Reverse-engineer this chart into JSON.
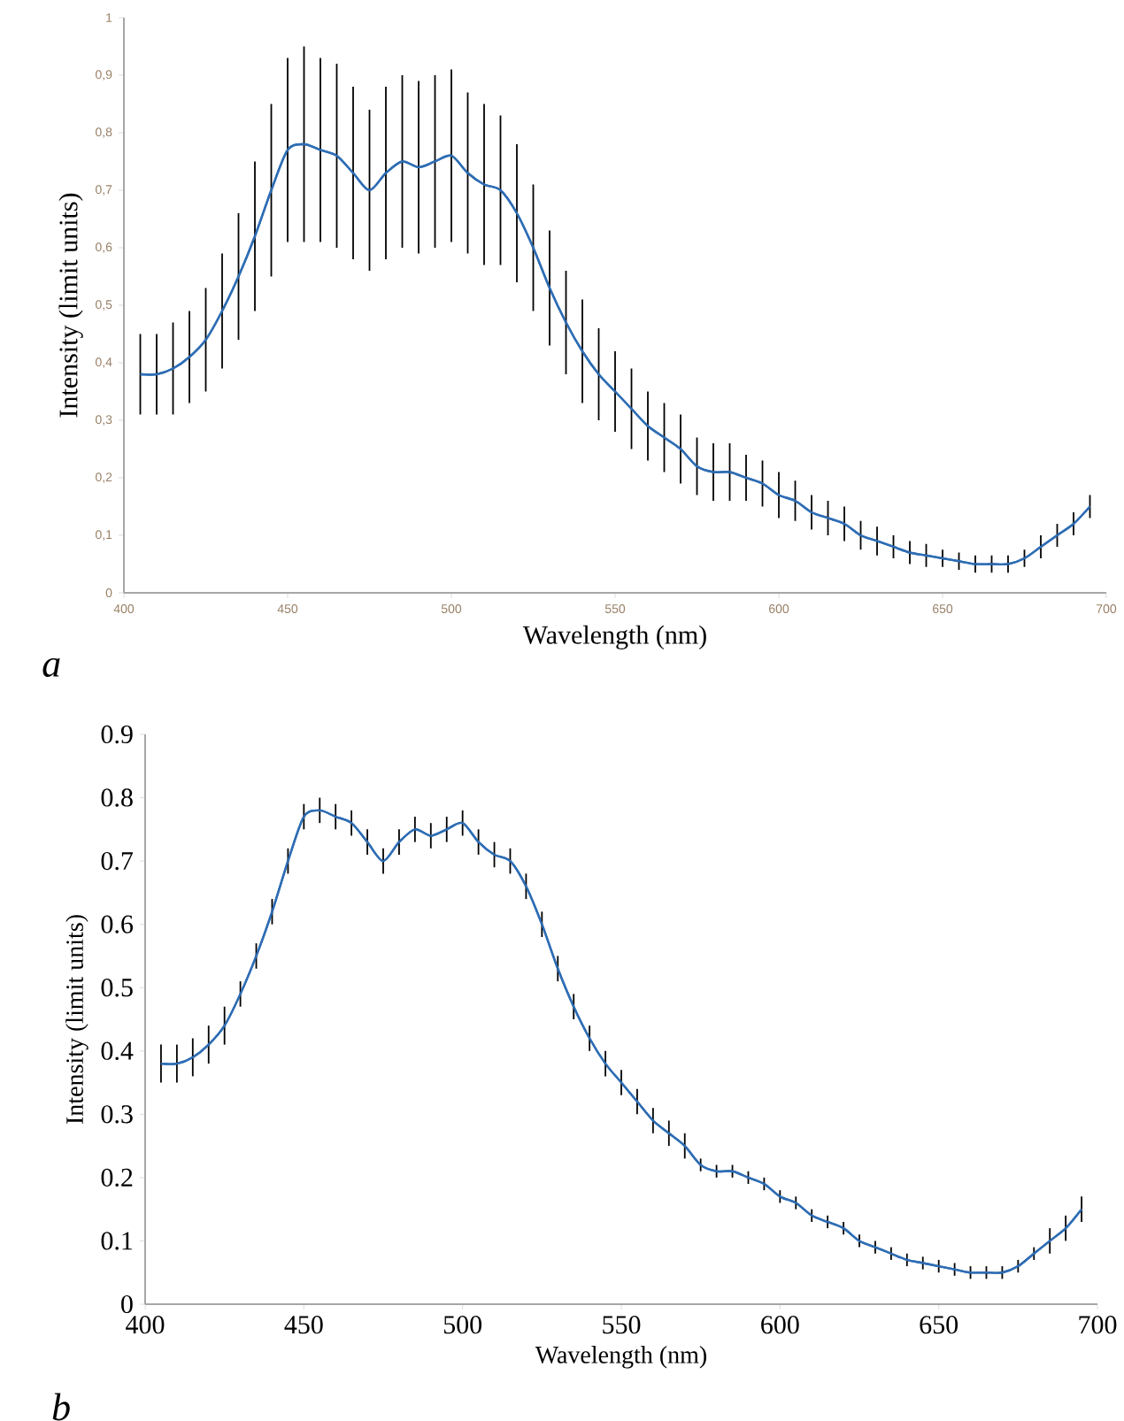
{
  "chart_data": [
    {
      "type": "line",
      "color": "#2e6db4",
      "xlabel": "Wavelength (nm)",
      "ylabel": "Intensity (limit units)",
      "annotations": [
        "a"
      ],
      "xlim": [
        400,
        700
      ],
      "ylim": [
        0,
        1
      ],
      "xticks": [
        400,
        450,
        500,
        550,
        600,
        650,
        700
      ],
      "yticks": [
        0,
        {
          "value": 0.1,
          "label": "0,1"
        },
        {
          "value": 0.2,
          "label": "0,2"
        },
        {
          "value": 0.3,
          "label": "0,3"
        },
        {
          "value": 0.4,
          "label": "0,4"
        },
        {
          "value": 0.5,
          "label": "0,5"
        },
        {
          "value": 0.6,
          "label": "0,6"
        },
        {
          "value": 0.7,
          "label": "0,7"
        },
        {
          "value": 0.8,
          "label": "0,8"
        },
        {
          "value": 0.9,
          "label": "0,9"
        },
        1
      ],
      "x": [
        405,
        410,
        415,
        420,
        425,
        430,
        435,
        440,
        445,
        450,
        455,
        460,
        465,
        470,
        475,
        480,
        485,
        490,
        495,
        500,
        505,
        510,
        515,
        520,
        525,
        530,
        535,
        540,
        545,
        550,
        555,
        560,
        565,
        570,
        575,
        580,
        585,
        590,
        595,
        600,
        605,
        610,
        615,
        620,
        625,
        630,
        635,
        640,
        645,
        650,
        655,
        660,
        665,
        670,
        675,
        680,
        685,
        690,
        695
      ],
      "values": [
        0.38,
        0.38,
        0.39,
        0.41,
        0.44,
        0.49,
        0.55,
        0.62,
        0.7,
        0.77,
        0.78,
        0.77,
        0.76,
        0.73,
        0.7,
        0.73,
        0.75,
        0.74,
        0.75,
        0.76,
        0.73,
        0.71,
        0.7,
        0.66,
        0.6,
        0.53,
        0.47,
        0.42,
        0.38,
        0.35,
        0.32,
        0.29,
        0.27,
        0.25,
        0.22,
        0.21,
        0.21,
        0.2,
        0.19,
        0.17,
        0.16,
        0.14,
        0.13,
        0.12,
        0.1,
        0.09,
        0.08,
        0.07,
        0.065,
        0.06,
        0.055,
        0.05,
        0.05,
        0.05,
        0.06,
        0.08,
        0.1,
        0.12,
        0.15
      ],
      "errors": [
        0.07,
        0.07,
        0.08,
        0.08,
        0.09,
        0.1,
        0.11,
        0.13,
        0.15,
        0.16,
        0.17,
        0.16,
        0.16,
        0.15,
        0.14,
        0.15,
        0.15,
        0.15,
        0.15,
        0.15,
        0.14,
        0.14,
        0.13,
        0.12,
        0.11,
        0.1,
        0.09,
        0.09,
        0.08,
        0.07,
        0.07,
        0.06,
        0.06,
        0.06,
        0.05,
        0.05,
        0.05,
        0.04,
        0.04,
        0.04,
        0.035,
        0.03,
        0.03,
        0.03,
        0.025,
        0.025,
        0.02,
        0.02,
        0.02,
        0.015,
        0.015,
        0.015,
        0.015,
        0.015,
        0.015,
        0.02,
        0.02,
        0.02,
        0.02
      ]
    },
    {
      "type": "line",
      "color": "#2e6db4",
      "xlabel": "Wavelength (nm)",
      "ylabel": "Intensity (limit units)",
      "annotations": [
        "b"
      ],
      "xlim": [
        400,
        700
      ],
      "ylim": [
        0,
        0.9
      ],
      "xticks": [
        400,
        450,
        500,
        550,
        600,
        650,
        700
      ],
      "yticks": [
        0,
        0.1,
        0.2,
        0.3,
        0.4,
        0.5,
        0.6,
        0.7,
        0.8,
        0.9
      ],
      "x": [
        405,
        410,
        415,
        420,
        425,
        430,
        435,
        440,
        445,
        450,
        455,
        460,
        465,
        470,
        475,
        480,
        485,
        490,
        495,
        500,
        505,
        510,
        515,
        520,
        525,
        530,
        535,
        540,
        545,
        550,
        555,
        560,
        565,
        570,
        575,
        580,
        585,
        590,
        595,
        600,
        605,
        610,
        615,
        620,
        625,
        630,
        635,
        640,
        645,
        650,
        655,
        660,
        665,
        670,
        675,
        680,
        685,
        690,
        695
      ],
      "values": [
        0.38,
        0.38,
        0.39,
        0.41,
        0.44,
        0.49,
        0.55,
        0.62,
        0.7,
        0.77,
        0.78,
        0.77,
        0.76,
        0.73,
        0.7,
        0.73,
        0.75,
        0.74,
        0.75,
        0.76,
        0.73,
        0.71,
        0.7,
        0.66,
        0.6,
        0.53,
        0.47,
        0.42,
        0.38,
        0.35,
        0.32,
        0.29,
        0.27,
        0.25,
        0.22,
        0.21,
        0.21,
        0.2,
        0.19,
        0.17,
        0.16,
        0.14,
        0.13,
        0.12,
        0.1,
        0.09,
        0.08,
        0.07,
        0.065,
        0.06,
        0.055,
        0.05,
        0.05,
        0.05,
        0.06,
        0.08,
        0.1,
        0.12,
        0.15
      ],
      "errors": [
        0.03,
        0.03,
        0.03,
        0.03,
        0.03,
        0.02,
        0.02,
        0.02,
        0.02,
        0.02,
        0.02,
        0.02,
        0.02,
        0.02,
        0.02,
        0.02,
        0.02,
        0.02,
        0.02,
        0.02,
        0.02,
        0.02,
        0.02,
        0.02,
        0.02,
        0.02,
        0.02,
        0.02,
        0.02,
        0.02,
        0.02,
        0.02,
        0.02,
        0.02,
        0.01,
        0.01,
        0.01,
        0.01,
        0.01,
        0.01,
        0.01,
        0.01,
        0.01,
        0.01,
        0.01,
        0.01,
        0.01,
        0.01,
        0.01,
        0.01,
        0.01,
        0.01,
        0.01,
        0.01,
        0.01,
        0.01,
        0.02,
        0.02,
        0.02
      ]
    }
  ]
}
